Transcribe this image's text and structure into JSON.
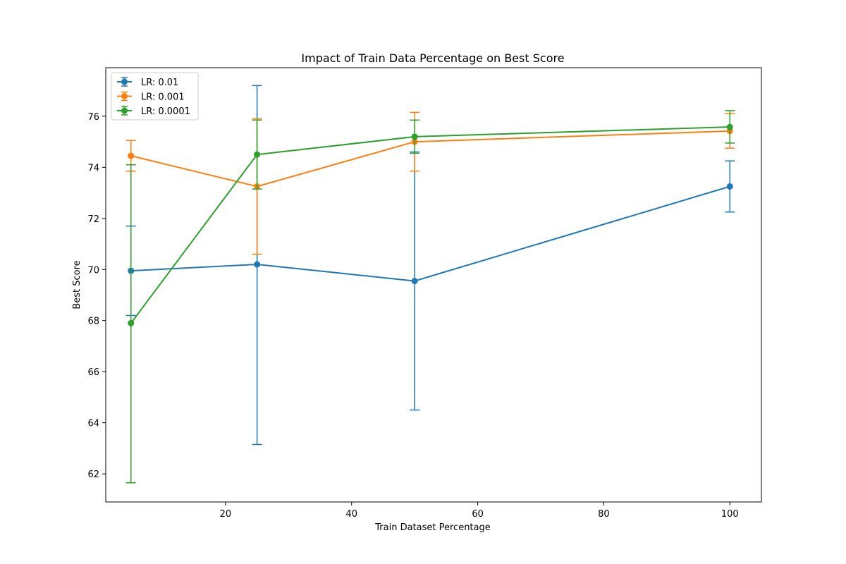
{
  "chart_data": {
    "type": "line",
    "title": "Impact of Train Data Percentage on Best Score",
    "xlabel": "Train Dataset Percentage",
    "ylabel": "Best Score",
    "x": [
      5,
      25,
      50,
      100
    ],
    "xlim": [
      1,
      105
    ],
    "ylim": [
      60.9,
      77.9
    ],
    "xticks": [
      20,
      40,
      60,
      80,
      100
    ],
    "yticks": [
      62,
      64,
      66,
      68,
      70,
      72,
      74,
      76
    ],
    "legend_position": "upper-left",
    "grid": false,
    "series": [
      {
        "name": "LR: 0.01",
        "color": "#1f77b4",
        "values": [
          69.95,
          70.2,
          69.55,
          73.25
        ],
        "error_low": [
          68.2,
          63.15,
          64.5,
          72.25
        ],
        "error_high": [
          71.7,
          77.2,
          74.6,
          74.25
        ]
      },
      {
        "name": "LR: 0.001",
        "color": "#ff7f0e",
        "values": [
          74.45,
          73.25,
          75.0,
          75.42
        ],
        "error_low": [
          73.85,
          70.6,
          73.85,
          74.75
        ],
        "error_high": [
          75.05,
          75.9,
          76.15,
          76.1
        ]
      },
      {
        "name": "LR: 0.0001",
        "color": "#2ca02c",
        "values": [
          67.9,
          74.5,
          75.2,
          75.58
        ],
        "error_low": [
          61.65,
          73.15,
          74.55,
          74.95
        ],
        "error_high": [
          74.1,
          75.85,
          75.85,
          76.22
        ]
      }
    ]
  }
}
